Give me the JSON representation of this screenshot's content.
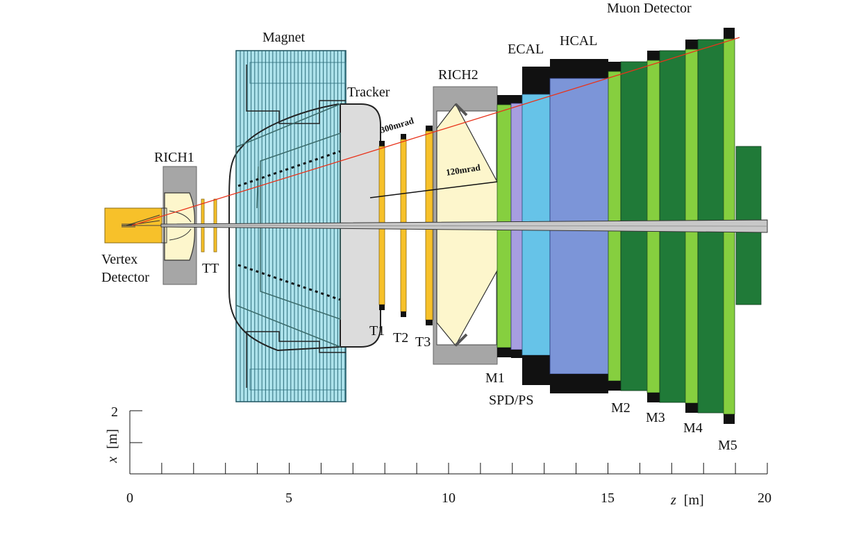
{
  "labels": {
    "magnet": "Magnet",
    "rich1": "RICH1",
    "rich2": "RICH2",
    "tracker": "Tracker",
    "vertex_line1": "Vertex",
    "vertex_line2": "Detector",
    "tt": "TT",
    "t1": "T1",
    "t2": "T2",
    "t3": "T3",
    "ecal": "ECAL",
    "hcal": "HCAL",
    "muon_detector": "Muon Detector",
    "spd_ps": "SPD/PS",
    "m1": "M1",
    "m2": "M2",
    "m3": "M3",
    "m4": "M4",
    "m5": "M5",
    "angle_300": "300mrad",
    "angle_120": "120mrad"
  },
  "axes": {
    "x_axis_var": "z",
    "x_axis_unit": "[m]",
    "x_axis_ticks": [
      "0",
      "5",
      "10",
      "15",
      "20"
    ],
    "y_axis_var": "x",
    "y_axis_unit": "[m]",
    "y_axis_ticks": [
      "2"
    ]
  },
  "colors": {
    "magnet": "#aee3ec",
    "rich": "#fdf6cc",
    "tracker_station": "#f7c12a",
    "vertex": "#f7c12a",
    "ecal": "#66c3e8",
    "hcal": "#7c95d8",
    "spd": "#a79ee0",
    "muon_light": "#86cf3f",
    "muon_dark": "#207a38",
    "steel": "#a6a6a6",
    "red_line": "#e8331b"
  }
}
